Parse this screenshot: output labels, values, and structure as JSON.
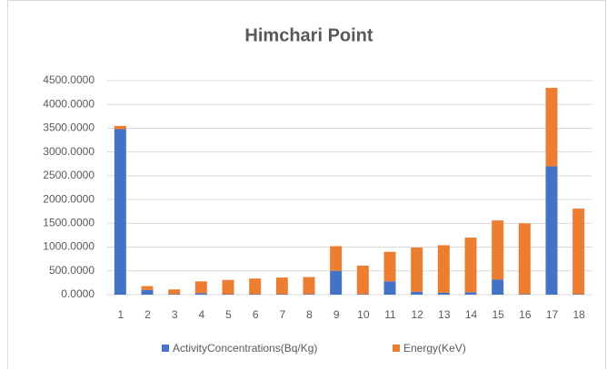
{
  "chart_data": {
    "type": "stacked_bar",
    "title": "Himchari Point",
    "categories": [
      "1",
      "2",
      "3",
      "4",
      "5",
      "6",
      "7",
      "8",
      "9",
      "10",
      "11",
      "12",
      "13",
      "14",
      "15",
      "16",
      "17",
      "18"
    ],
    "series": [
      {
        "name": "ActivityConcentrations(Bq/Kg)",
        "color": "#4472c4",
        "values": [
          3480,
          100,
          10,
          30,
          10,
          10,
          10,
          10,
          500,
          10,
          280,
          60,
          40,
          50,
          320,
          10,
          2700,
          10
        ]
      },
      {
        "name": "Energy(KeV)",
        "color": "#ed7d31",
        "values": [
          70,
          80,
          100,
          250,
          300,
          330,
          350,
          360,
          520,
          600,
          620,
          930,
          1000,
          1150,
          1240,
          1490,
          1650,
          1800
        ]
      }
    ],
    "ylim": [
      0,
      4500
    ],
    "yticks": [
      {
        "value": 0,
        "label": "0.0000"
      },
      {
        "value": 500,
        "label": "500.0000"
      },
      {
        "value": 1000,
        "label": "1000.0000"
      },
      {
        "value": 1500,
        "label": "1500.0000"
      },
      {
        "value": 2000,
        "label": "2000.0000"
      },
      {
        "value": 2500,
        "label": "2500.0000"
      },
      {
        "value": 3000,
        "label": "3000.0000"
      },
      {
        "value": 3500,
        "label": "3500.0000"
      },
      {
        "value": 4000,
        "label": "4000.0000"
      },
      {
        "value": 4500,
        "label": "4500.0000"
      }
    ],
    "grid": true,
    "legend": "bottom"
  }
}
